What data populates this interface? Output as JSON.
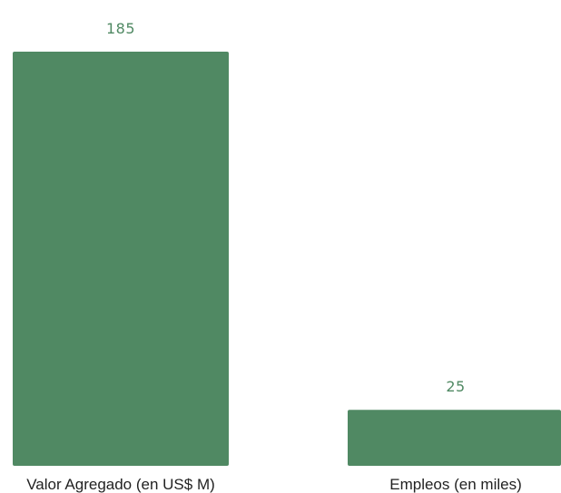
{
  "colors": {
    "bar": "#508963",
    "value_label": "#508963",
    "category_label": "#222222"
  },
  "chart_data": {
    "type": "bar",
    "categories": [
      "Valor Agregado (en US$ M)",
      "Empleos (en miles)"
    ],
    "values": [
      185,
      25
    ],
    "data_labels": [
      "185",
      "25"
    ],
    "title": "",
    "xlabel": "",
    "ylabel": "",
    "ylim": [
      0,
      185
    ],
    "grid": false,
    "legend": "none"
  }
}
